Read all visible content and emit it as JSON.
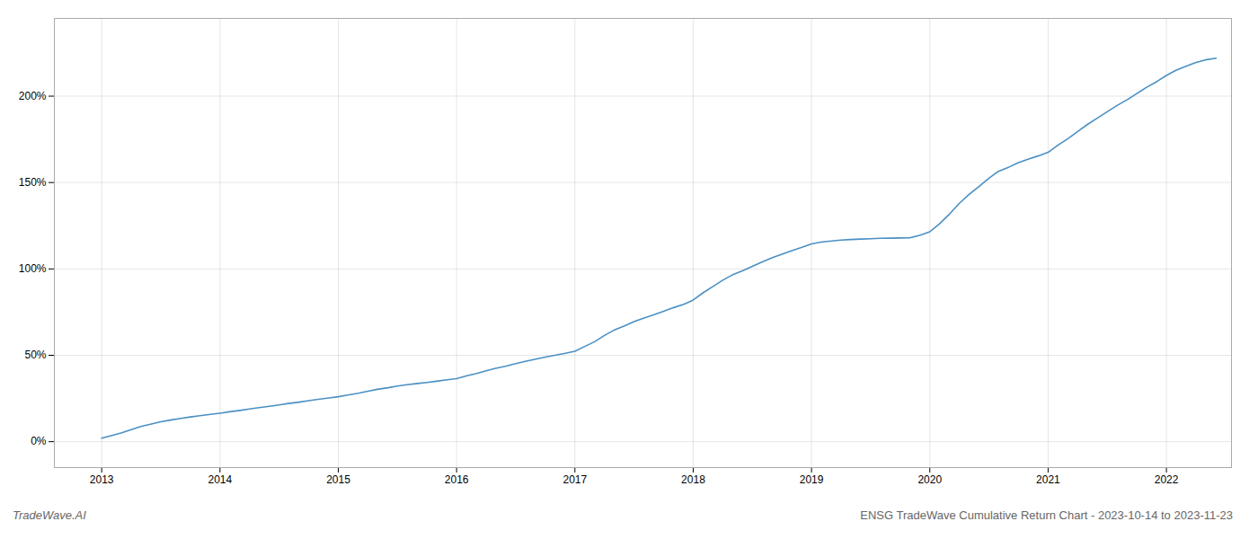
{
  "chart_data": {
    "type": "line",
    "title": "ENSG TradeWave Cumulative Return Chart - 2023-10-14 to 2023-11-23",
    "annotations": [
      "TradeWave.AI"
    ],
    "color": "#4a90c4",
    "grid": true,
    "xlim": [
      2012.6,
      2022.55
    ],
    "xticks": [
      2013,
      2014,
      2015,
      2016,
      2017,
      2018,
      2019,
      2020,
      2021,
      2022
    ],
    "ylim": [
      -15,
      245
    ],
    "yticks": [
      {
        "value": 0,
        "label": "0%"
      },
      {
        "value": 50,
        "label": "50%"
      },
      {
        "value": 100,
        "label": "100%"
      },
      {
        "value": 150,
        "label": "150%"
      },
      {
        "value": 200,
        "label": "200%"
      }
    ],
    "x": [
      2013.0,
      2013.08,
      2013.17,
      2013.25,
      2013.33,
      2013.42,
      2013.5,
      2013.58,
      2013.67,
      2013.75,
      2013.83,
      2013.92,
      2014.0,
      2014.08,
      2014.17,
      2014.25,
      2014.33,
      2014.42,
      2014.5,
      2014.58,
      2014.67,
      2014.75,
      2014.83,
      2014.92,
      2015.0,
      2015.08,
      2015.17,
      2015.25,
      2015.33,
      2015.42,
      2015.5,
      2015.58,
      2015.67,
      2015.75,
      2015.83,
      2015.92,
      2016.0,
      2016.08,
      2016.17,
      2016.25,
      2016.33,
      2016.42,
      2016.5,
      2016.58,
      2016.67,
      2016.75,
      2016.83,
      2016.92,
      2017.0,
      2017.08,
      2017.17,
      2017.25,
      2017.33,
      2017.42,
      2017.5,
      2017.58,
      2017.67,
      2017.75,
      2017.83,
      2017.92,
      2018.0,
      2018.08,
      2018.17,
      2018.25,
      2018.33,
      2018.42,
      2018.5,
      2018.58,
      2018.67,
      2018.75,
      2018.83,
      2018.92,
      2019.0,
      2019.08,
      2019.17,
      2019.25,
      2019.33,
      2019.42,
      2019.5,
      2019.58,
      2019.67,
      2019.75,
      2019.83,
      2019.92,
      2020.0,
      2020.08,
      2020.17,
      2020.25,
      2020.33,
      2020.42,
      2020.5,
      2020.58,
      2020.67,
      2020.75,
      2020.83,
      2020.92,
      2021.0,
      2021.08,
      2021.17,
      2021.25,
      2021.33,
      2021.42,
      2021.5,
      2021.58,
      2021.67,
      2021.75,
      2021.83,
      2021.92,
      2022.0,
      2022.08,
      2022.17,
      2022.25,
      2022.33,
      2022.42
    ],
    "values": [
      2.0,
      3.5,
      5.2,
      7.0,
      8.8,
      10.2,
      11.5,
      12.5,
      13.5,
      14.3,
      15.0,
      15.8,
      16.5,
      17.3,
      18.1,
      18.9,
      19.7,
      20.5,
      21.3,
      22.1,
      22.9,
      23.7,
      24.5,
      25.3,
      26.0,
      27.0,
      28.0,
      29.2,
      30.3,
      31.2,
      32.2,
      33.0,
      33.7,
      34.3,
      35.0,
      35.8,
      36.5,
      38.0,
      39.5,
      41.0,
      42.5,
      43.8,
      45.2,
      46.5,
      47.8,
      49.0,
      50.0,
      51.2,
      52.3,
      55.0,
      58.0,
      61.5,
      64.5,
      67.0,
      69.5,
      71.5,
      73.5,
      75.5,
      77.5,
      79.5,
      82.0,
      86.0,
      90.0,
      93.5,
      96.5,
      99.0,
      101.5,
      104.0,
      106.5,
      108.5,
      110.5,
      112.5,
      114.5,
      115.5,
      116.2,
      116.7,
      117.0,
      117.3,
      117.5,
      117.7,
      117.8,
      117.9,
      118.0,
      119.5,
      121.5,
      126.0,
      132.0,
      138.0,
      143.0,
      148.0,
      152.5,
      156.5,
      159.0,
      161.5,
      163.5,
      165.5,
      167.5,
      171.5,
      175.5,
      179.5,
      183.5,
      187.5,
      191.0,
      194.5,
      198.0,
      201.5,
      205.0,
      208.5,
      212.0,
      215.0,
      217.5,
      219.5,
      221.0,
      222.0
    ]
  }
}
